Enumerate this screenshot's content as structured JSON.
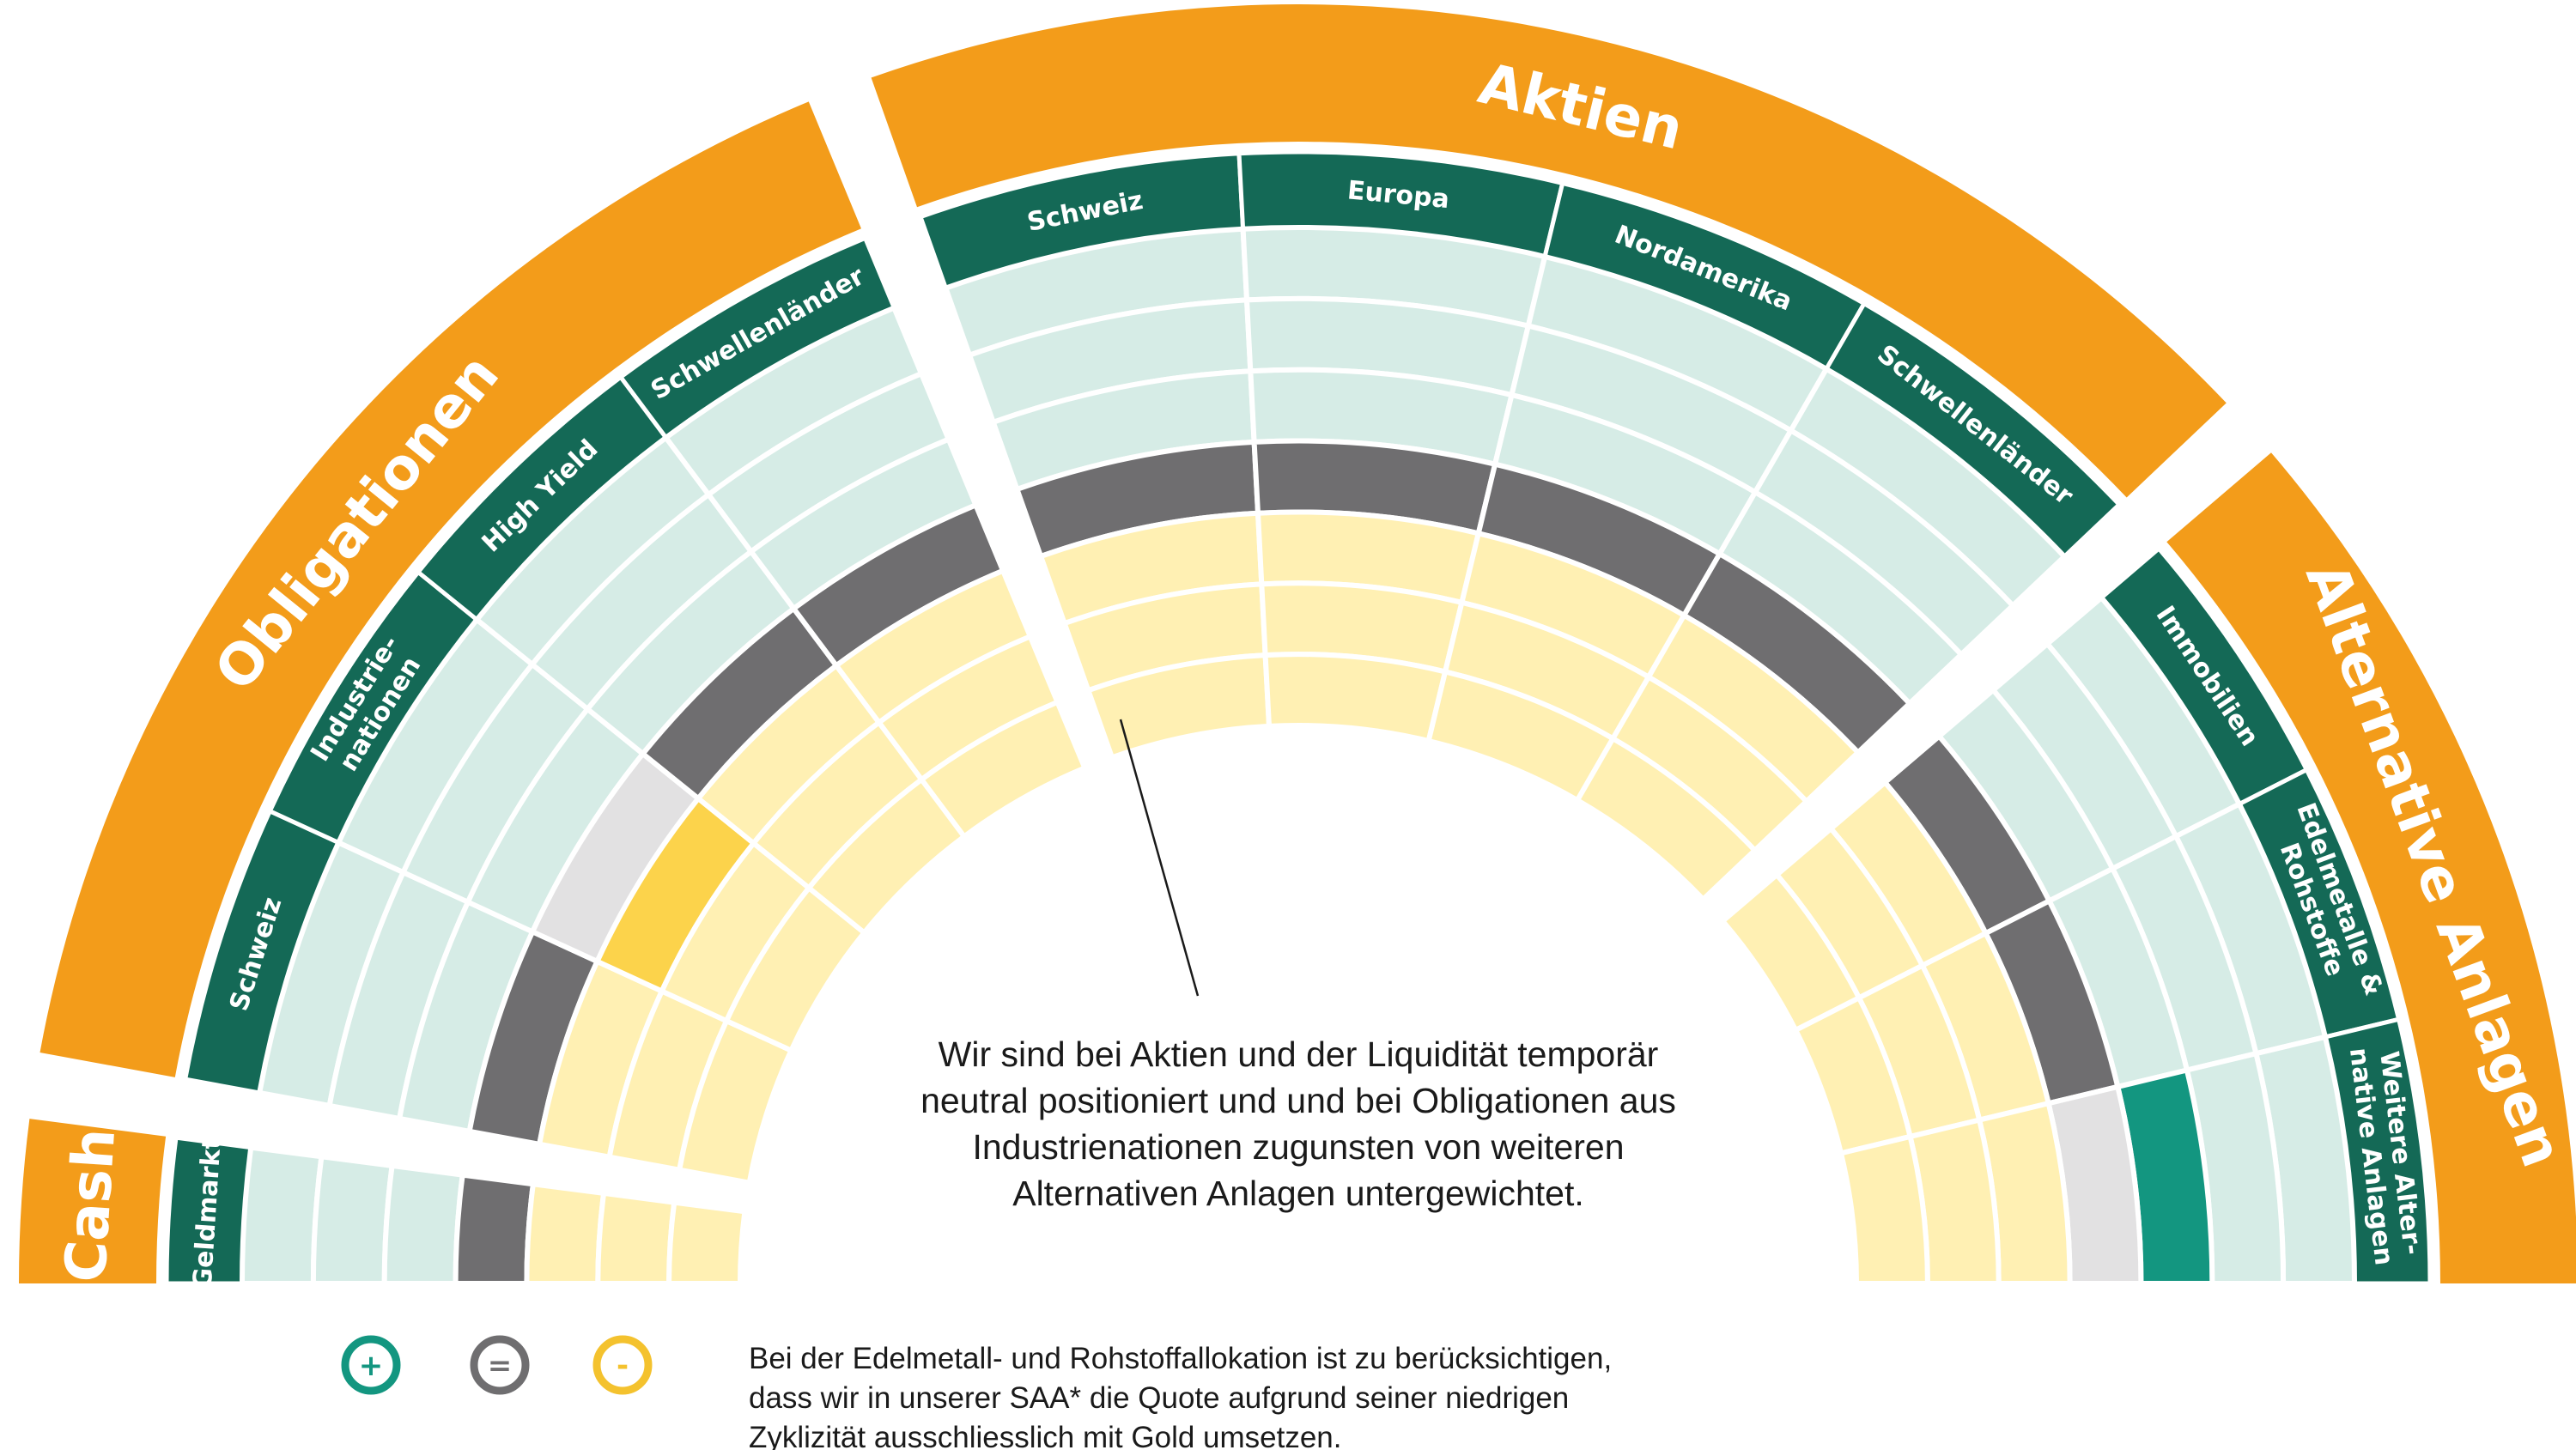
{
  "categories": [
    {
      "id": "cash",
      "label": "Cash",
      "start": 180,
      "end": 172.6,
      "subs": [
        {
          "label": "Geldmarkt",
          "lines": [
            "Geldmarkt"
          ],
          "rating": 0
        }
      ]
    },
    {
      "id": "obligationen",
      "label": "Obligationen",
      "start": 169.6,
      "end": 112.5,
      "subs": [
        {
          "label": "Schweiz",
          "lines": [
            "Schweiz"
          ],
          "rating": 0
        },
        {
          "label": "Industrie-nationen",
          "lines": [
            "Industrie-",
            "nationen"
          ],
          "rating": -1
        },
        {
          "label": "High Yield",
          "lines": [
            "High Yield"
          ],
          "rating": 0
        },
        {
          "label": "Schwellenländer",
          "lines": [
            "Schwellenländer"
          ],
          "rating": 0
        }
      ]
    },
    {
      "id": "aktien",
      "label": "Aktien",
      "start": 109.5,
      "end": 43.5,
      "subs": [
        {
          "label": "Schweiz",
          "lines": [
            "Schweiz"
          ],
          "rating": 0
        },
        {
          "label": "Europa",
          "lines": [
            "Europa"
          ],
          "rating": 0
        },
        {
          "label": "Nordamerika",
          "lines": [
            "Nordamerika"
          ],
          "rating": 0
        },
        {
          "label": "Schwellenländer",
          "lines": [
            "Schwellenländer"
          ],
          "rating": 0
        }
      ]
    },
    {
      "id": "alternative",
      "label": "Alternative Anlagen",
      "start": 40.5,
      "end": 0,
      "subs": [
        {
          "label": "Immobilien",
          "lines": [
            "Immobilien"
          ],
          "rating": 0
        },
        {
          "label": "Edelmetalle & Rohstoffe",
          "lines": [
            "Edelmetalle &",
            "Rohstoffe"
          ],
          "rating": 0
        },
        {
          "label": "Weitere Alternative Anlagen",
          "lines": [
            "Weitere Alter-",
            "native Anlagen"
          ],
          "rating": 1
        }
      ]
    }
  ],
  "scale": {
    "steps": [
      "--",
      "-",
      "=",
      "+",
      "++"
    ],
    "neutral_index": 2
  },
  "callout": {
    "lines": [
      "Wir sind bei Aktien und der Liquidität temporär",
      "neutral positioniert und und bei Obligationen aus",
      "Industrienationen zugunsten von weiteren",
      "Alternativen Anlagen untergewichtet."
    ]
  },
  "legend": [
    {
      "symbol": "+",
      "name": "overweight",
      "color": "#139680"
    },
    {
      "symbol": "=",
      "name": "neutral",
      "color": "#6f6e70"
    },
    {
      "symbol": "-",
      "name": "underweight",
      "color": "#f4c22e"
    }
  ],
  "footnote": {
    "lines": [
      "Bei der Edelmetall- und Rohstoffallokation ist zu berücksichtigen,",
      "dass wir in unserer SAA* die Quote aufgrund seiner niedrigen",
      "Zyklizität ausschliesslich mit Gold umsetzen."
    ]
  },
  "colors": {
    "orange": "#f39c1a",
    "dark_green": "#146956",
    "teal": "#139680",
    "light_green": "#d6ece6",
    "light_yellow": "#fff0b3",
    "yellow": "#fcd34b",
    "dark_gray": "#6f6e70",
    "light_gray": "#e2e1e2",
    "text": "#1a1a1a"
  }
}
